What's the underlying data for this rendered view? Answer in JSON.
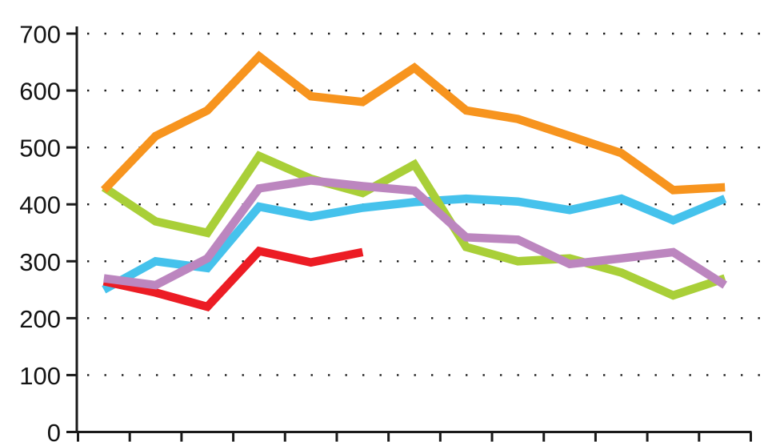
{
  "chart_data": {
    "type": "line",
    "title": "",
    "x_axis": {
      "labels_visible": false,
      "tick_count": 14,
      "note": "14 unlabeled tick marks; 13 data points centered between ticks"
    },
    "y_axis": {
      "min": 0,
      "max": 700,
      "tick_step": 100,
      "tick_labels": [
        "0",
        "100",
        "200",
        "300",
        "400",
        "500",
        "600",
        "700"
      ]
    },
    "grid": {
      "horizontal_dotted": true,
      "dot_color": "#1a1a1a",
      "rows_at": [
        100,
        200,
        300,
        400,
        500,
        600,
        700
      ]
    },
    "axis_color": "#1a1a1a",
    "legend": "none",
    "series": [
      {
        "name": "cyan",
        "color": "#45c2ec",
        "values": [
          250,
          300,
          288,
          396,
          378,
          394,
          404,
          410,
          405,
          390,
          410,
          372,
          410
        ]
      },
      {
        "name": "green",
        "color": "#a9cf38",
        "values": [
          430,
          370,
          350,
          485,
          445,
          420,
          470,
          325,
          300,
          305,
          280,
          240,
          270
        ]
      },
      {
        "name": "orange",
        "color": "#f7941e",
        "values": [
          425,
          520,
          565,
          660,
          590,
          580,
          640,
          565,
          550,
          520,
          490,
          425,
          430
        ]
      },
      {
        "name": "red",
        "color": "#ec1c24",
        "values": [
          265,
          245,
          220,
          318,
          298,
          316
        ]
      },
      {
        "name": "purple",
        "color": "#bc86bf",
        "values": [
          270,
          258,
          305,
          428,
          442,
          432,
          424,
          342,
          338,
          295,
          305,
          316,
          258
        ]
      }
    ]
  }
}
